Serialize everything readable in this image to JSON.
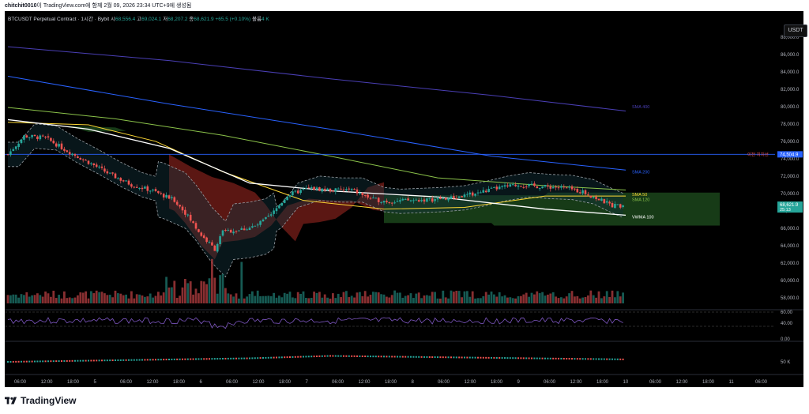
{
  "header": {
    "author": "chitchit0010",
    "rest": "이 TradingView.com에 함께 2월 09, 2026 23:34 UTC+9에 생성됨"
  },
  "currency": "USDT",
  "legend": {
    "symbol": "BTCUSDT Perpetual Contract · 1시간 · Bybit",
    "o_label": "시",
    "o": "68,556.4",
    "h_label": "고",
    "h": "69,024.1",
    "l_label": "저",
    "l": "68,207.2",
    "c_label": "종",
    "c": "68,621.9",
    "change": "+65.5 (+0.10%)",
    "vol_label": "볼륨",
    "vol": "4 K"
  },
  "colors": {
    "up": "#26a69a",
    "down": "#ef5350",
    "sma400": "#4a3fb5",
    "sma200": "#2962ff",
    "sma50": "#fdd835",
    "sma120": "#8bc34a",
    "vwma100": "#ffffff",
    "rsi": "#7e57c2"
  },
  "tags": {
    "resistance": "이전 지지선",
    "resistance_value": "74,504.9",
    "last_price": "68,621.9",
    "countdown": "25:13"
  },
  "chart_data": {
    "type": "candlestick",
    "price_axis": {
      "ylim": [
        56800,
        89000
      ],
      "ticks": [
        "88,000.0",
        "86,000.0",
        "84,000.0",
        "82,000.0",
        "80,000.0",
        "78,000.0",
        "76,000.0",
        "74,000.0",
        "72,000.0",
        "70,000.0",
        "68,000.0",
        "66,000.0",
        "64,000.0",
        "62,000.0",
        "60,000.0",
        "58,000.0"
      ],
      "tick_values": [
        88000,
        86000,
        84000,
        82000,
        80000,
        78000,
        76000,
        74000,
        72000,
        70000,
        68000,
        66000,
        64000,
        62000,
        60000,
        58000
      ]
    },
    "x_ticks": [
      "06:00",
      "12:00",
      "18:00",
      "5",
      "06:00",
      "12:00",
      "18:00",
      "6",
      "06:00",
      "12:00",
      "18:00",
      "7",
      "06:00",
      "12:00",
      "18:00",
      "8",
      "06:00",
      "12:00",
      "18:00",
      "9",
      "06:00",
      "12:00",
      "18:00",
      "10",
      "06:00",
      "12:00",
      "18:00",
      "11",
      "06:00"
    ],
    "rsi_ticks": [
      "60.00",
      "40.00",
      "0.00"
    ],
    "vol_tick": "50 K",
    "ma_labels": {
      "sma400": "SMA 400",
      "sma200": "SMA 200",
      "sma50": "SMA 50",
      "sma120": "SMA 120",
      "vwma100": "VWMA 100"
    },
    "horizontal_line": 74504.9,
    "key_closes": [
      [
        0,
        74500
      ],
      [
        6,
        76600
      ],
      [
        14,
        76400
      ],
      [
        22,
        74900
      ],
      [
        30,
        73600
      ],
      [
        38,
        72200
      ],
      [
        46,
        71000
      ],
      [
        54,
        70300
      ],
      [
        62,
        69200
      ],
      [
        66,
        67800
      ],
      [
        72,
        65200
      ],
      [
        77,
        63600
      ],
      [
        80,
        65600
      ],
      [
        86,
        65800
      ],
      [
        92,
        66200
      ],
      [
        98,
        67500
      ],
      [
        104,
        69800
      ],
      [
        112,
        70600
      ],
      [
        120,
        70400
      ],
      [
        128,
        70400
      ],
      [
        136,
        69300
      ],
      [
        142,
        69100
      ],
      [
        150,
        69200
      ],
      [
        158,
        69300
      ],
      [
        166,
        69500
      ],
      [
        174,
        70000
      ],
      [
        182,
        70600
      ],
      [
        190,
        71000
      ],
      [
        198,
        70800
      ],
      [
        206,
        70700
      ],
      [
        214,
        70200
      ],
      [
        220,
        69300
      ],
      [
        225,
        68621.9
      ]
    ]
  }
}
